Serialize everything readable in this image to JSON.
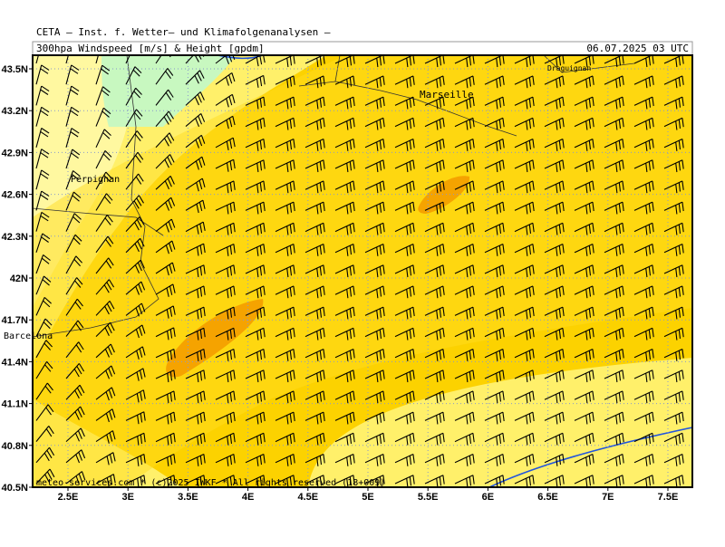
{
  "header": {
    "title": "CETA – Inst. f. Wetter– und Klimafolgenanalysen –",
    "subtitle": "300hpa Windspeed [m/s] & Height [gpdm]",
    "valid_time": "06.07.2025 03 UTC"
  },
  "axes": {
    "lat_labels": [
      "43.5N",
      "43.2N",
      "42.9N",
      "42.6N",
      "42.3N",
      "42N",
      "41.7N",
      "41.4N",
      "41.1N",
      "40.8N",
      "40.5N"
    ],
    "lon_labels": [
      "2.5E",
      "3E",
      "3.5E",
      "4E",
      "4.5E",
      "5E",
      "5.5E",
      "6E",
      "6.5E",
      "7E",
      "7.5E"
    ]
  },
  "places": [
    {
      "label": "Marseille"
    },
    {
      "label": "Perpignan"
    },
    {
      "label": "Barcelona"
    },
    {
      "label": "Draguignan"
    }
  ],
  "footer": "meteo-services.com * (c)2025 IWKF * All rights reserved (18+009)"
}
